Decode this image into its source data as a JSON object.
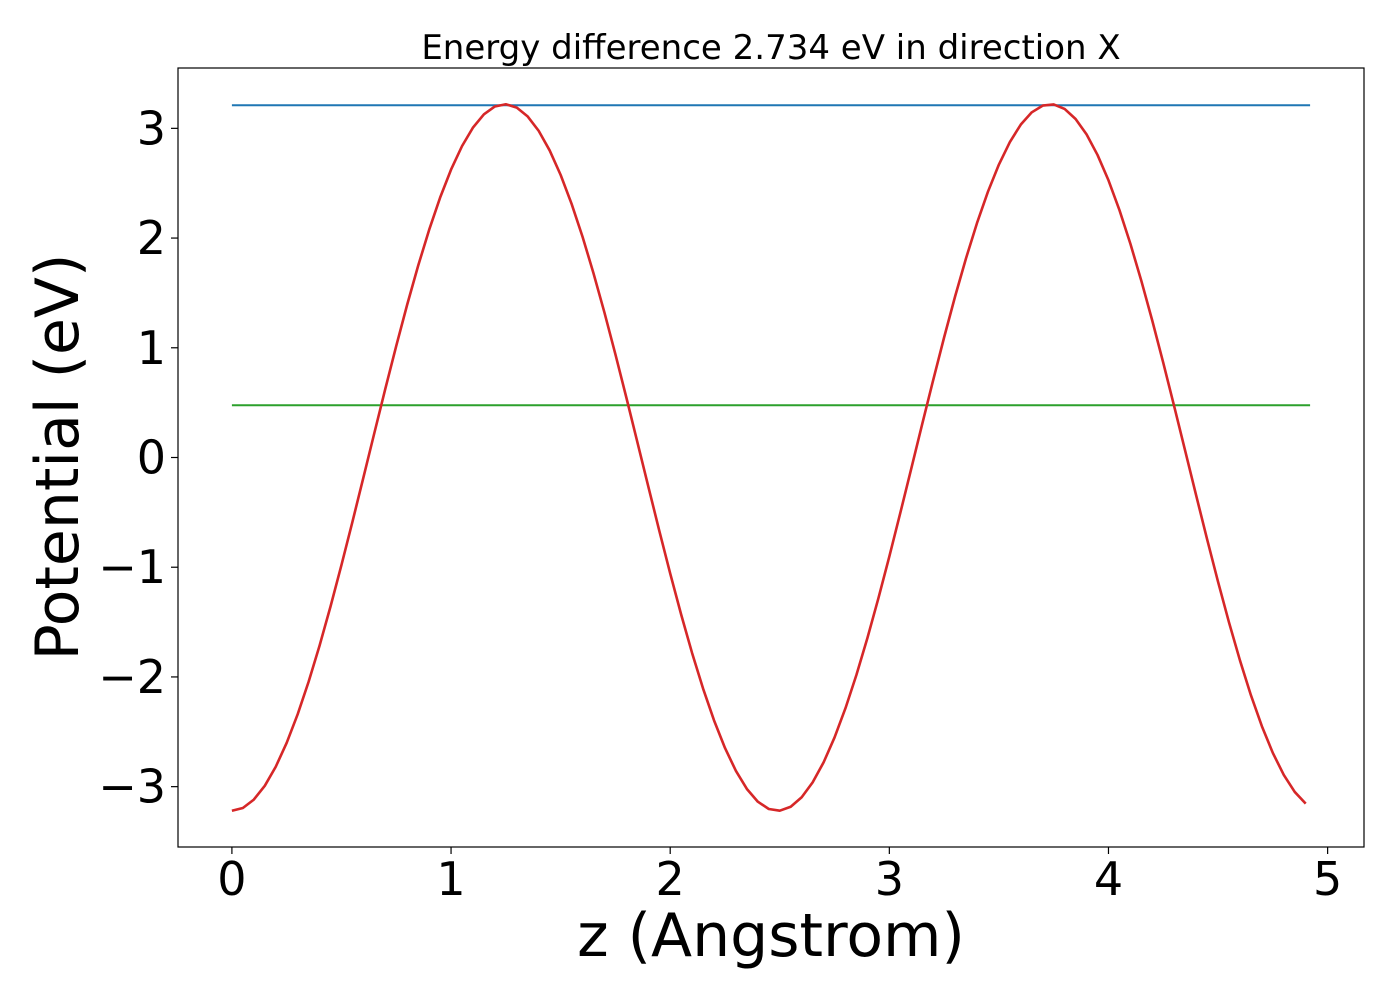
{
  "chart_data": {
    "type": "line",
    "title": "Energy difference 2.734 eV in direction X",
    "xlabel": "z (Angstrom)",
    "ylabel": "Potential (eV)",
    "xlim": [
      -0.246,
      5.166
    ],
    "ylim": [
      -3.55,
      3.55
    ],
    "xticks": [
      0,
      1,
      2,
      3,
      4,
      5
    ],
    "xtick_labels": [
      "0",
      "1",
      "2",
      "3",
      "4",
      "5"
    ],
    "yticks": [
      -3,
      -2,
      -1,
      0,
      1,
      2,
      3
    ],
    "ytick_labels": [
      "−3",
      "−2",
      "−1",
      "0",
      "1",
      "2",
      "3"
    ],
    "grid": false,
    "potential_curve": {
      "color": "#d62728",
      "amplitude": 3.22,
      "period": 2.49,
      "x_start": 0,
      "x_end": 4.92,
      "x_step": 0.05
    },
    "series": [
      {
        "color": "#1f77b4",
        "x": [
          0,
          4.92
        ],
        "y": [
          3.21,
          3.21
        ]
      },
      {
        "color": "#2ca02c",
        "x": [
          0,
          4.92
        ],
        "y": [
          0.476,
          0.476
        ]
      }
    ]
  }
}
